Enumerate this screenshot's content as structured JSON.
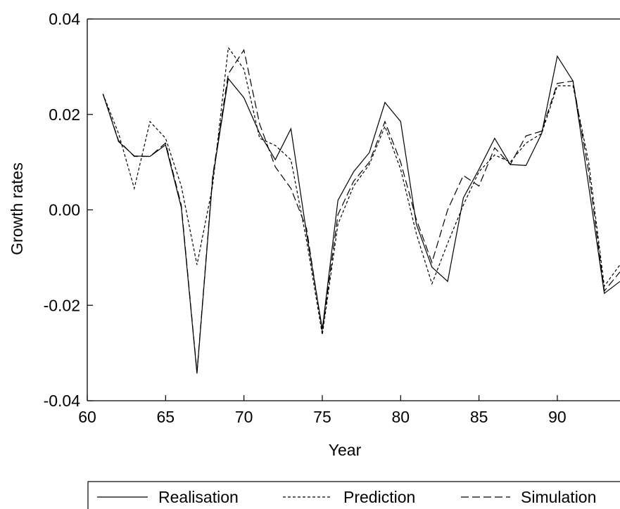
{
  "chart_data": {
    "type": "line",
    "title": "",
    "xlabel": "Year",
    "ylabel": "Growth rates",
    "xlim": [
      60,
      94
    ],
    "ylim": [
      -0.04,
      0.04
    ],
    "x_ticks": [
      60,
      65,
      70,
      75,
      80,
      85,
      90
    ],
    "y_ticks": [
      0.04,
      0.02,
      0.0,
      -0.02,
      -0.04
    ],
    "y_tick_labels": [
      "0.04",
      "0.02",
      "0.00",
      "-0.02",
      "-0.04"
    ],
    "x": [
      61,
      62,
      63,
      64,
      65,
      66,
      67,
      68,
      69,
      70,
      71,
      72,
      73,
      74,
      75,
      76,
      77,
      78,
      79,
      80,
      81,
      82,
      83,
      84,
      85,
      86,
      87,
      88,
      89,
      90,
      91,
      92,
      93,
      94
    ],
    "series": [
      {
        "name": "Realisation",
        "dash": "solid",
        "values": [
          0.0243,
          0.0143,
          0.0113,
          0.0112,
          0.0136,
          0.0005,
          -0.0343,
          0.0065,
          0.0275,
          0.0235,
          0.016,
          0.0105,
          0.017,
          -0.005,
          -0.025,
          0.002,
          0.008,
          0.012,
          0.0225,
          0.0185,
          -0.003,
          -0.012,
          -0.015,
          0.0025,
          0.0085,
          0.015,
          0.0095,
          0.0093,
          0.016,
          0.0322,
          0.027,
          0.005,
          -0.0175,
          -0.015
        ]
      },
      {
        "name": "Prediction",
        "dash": "short",
        "values": [
          0.0243,
          0.016,
          0.0045,
          0.0185,
          0.015,
          0.005,
          -0.0115,
          0.005,
          0.034,
          0.0295,
          0.015,
          0.0135,
          0.0105,
          -0.0065,
          -0.0262,
          -0.003,
          0.005,
          0.0095,
          0.0175,
          0.0085,
          -0.005,
          -0.0155,
          -0.007,
          0.001,
          0.008,
          0.0115,
          0.01,
          0.014,
          0.016,
          0.026,
          0.026,
          0.01,
          -0.016,
          -0.0115
        ]
      },
      {
        "name": "Simulation",
        "dash": "long",
        "values": [
          0.0243,
          0.0145,
          0.0112,
          0.0112,
          0.014,
          0.001,
          -0.034,
          0.007,
          0.0285,
          0.0335,
          0.018,
          0.009,
          0.0045,
          -0.004,
          -0.0255,
          -0.001,
          0.006,
          0.01,
          0.0185,
          0.01,
          -0.002,
          -0.011,
          0.0,
          0.0072,
          0.005,
          0.013,
          0.0095,
          0.0155,
          0.0165,
          0.0265,
          0.027,
          0.008,
          -0.017,
          -0.013
        ]
      }
    ],
    "legend": {
      "placement": "bottom",
      "entries": [
        "Realisation",
        "Prediction",
        "Simulation"
      ]
    }
  }
}
